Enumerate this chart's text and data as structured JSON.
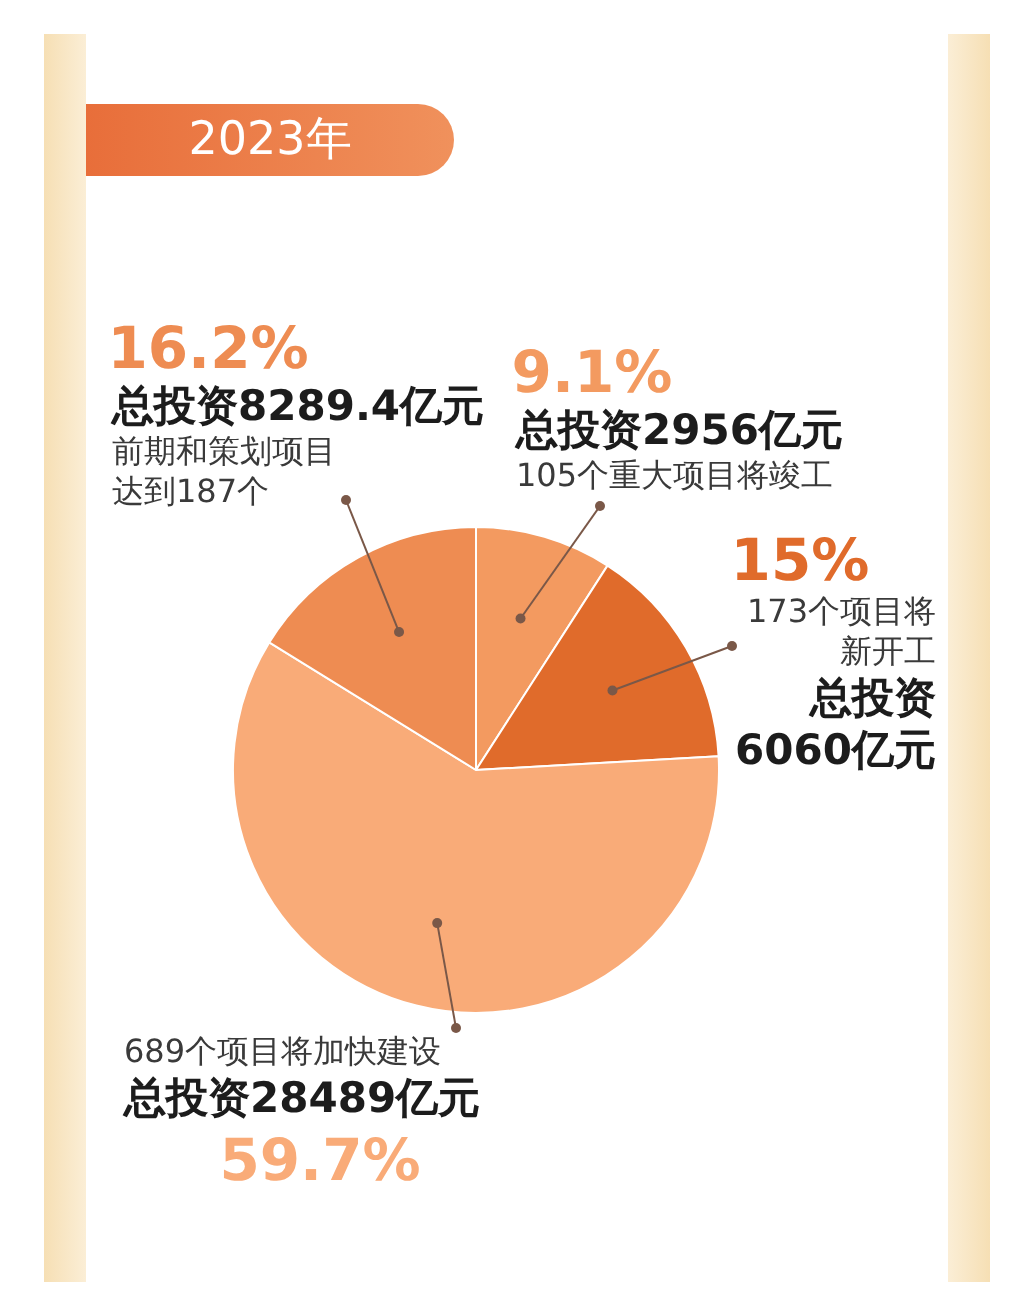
{
  "chart_data": {
    "type": "pie",
    "title": "2023年",
    "categories": [
      "105个重大项目将竣工",
      "173个项目将新开工",
      "689个项目将加快建设",
      "前期和策划项目达到187个"
    ],
    "values": [
      9.1,
      15,
      59.7,
      16.2
    ],
    "value_labels": [
      "9.1%",
      "15%",
      "59.7%",
      "16.2%"
    ],
    "annotations": [
      "总投资2956亿元",
      "总投资6060亿元",
      "总投资28489亿元",
      "总投资8289.4亿元"
    ],
    "colors": [
      "#f39a60",
      "#e06b2b",
      "#f9ab78",
      "#ee8c52"
    ],
    "legend": false
  }
}
